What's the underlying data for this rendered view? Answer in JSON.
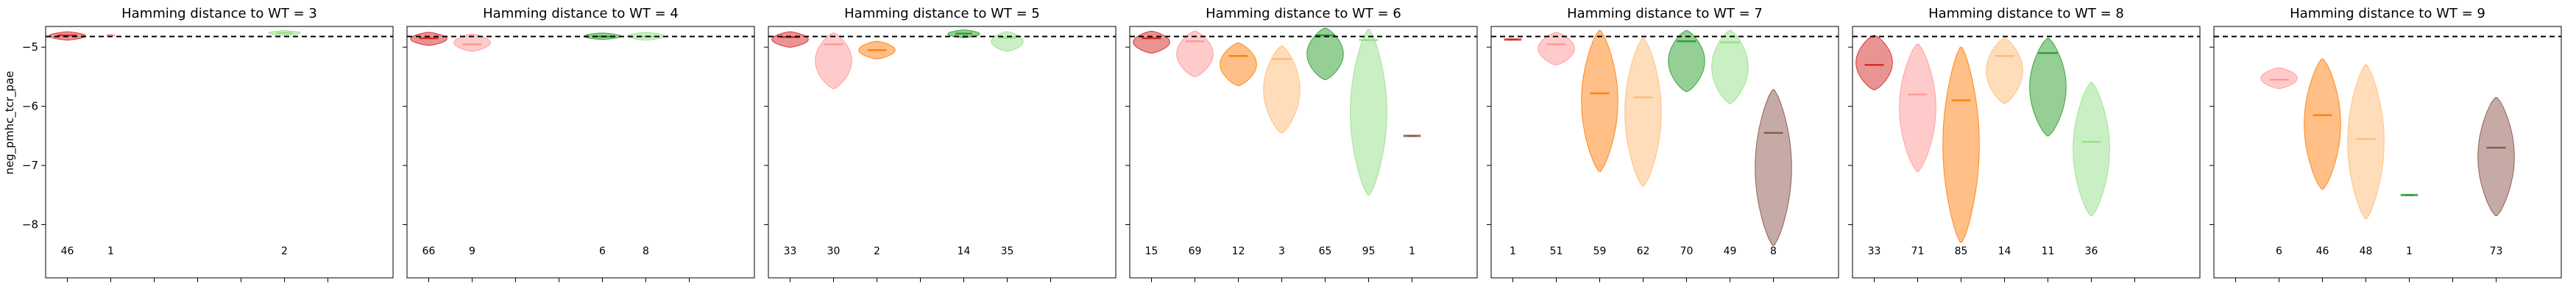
{
  "chart_data": {
    "type": "violin",
    "ylabel": "neg_pmhc_tcr_pae",
    "ylim": [
      -8.9,
      -4.65
    ],
    "yticks": [
      -5,
      -6,
      -7,
      -8
    ],
    "reference_line_y": -4.82,
    "series_colors": [
      "#d62728",
      "#ff9896",
      "#ff7f0e",
      "#ffbb78",
      "#2ca02c",
      "#98df8a",
      "#8c564b"
    ],
    "panels": [
      {
        "title": "Hamming distance to WT = 3",
        "violins": [
          {
            "slot": 0,
            "count": "46",
            "min": -4.88,
            "max": -4.74,
            "median": -4.8,
            "maxw": 0.8
          },
          {
            "slot": 1,
            "count": "1",
            "min": -4.8,
            "max": -4.8,
            "median": -4.8,
            "maxw": 0.2
          },
          {
            "slot": 5,
            "count": "2",
            "min": -4.8,
            "max": -4.72,
            "median": -4.76,
            "maxw": 0.7
          }
        ]
      },
      {
        "title": "Hamming distance to WT = 4",
        "violins": [
          {
            "slot": 0,
            "count": "66",
            "min": -4.97,
            "max": -4.75,
            "median": -4.85,
            "maxw": 0.8
          },
          {
            "slot": 1,
            "count": "9",
            "min": -5.07,
            "max": -4.78,
            "median": -4.95,
            "maxw": 0.8
          },
          {
            "slot": 4,
            "count": "6",
            "min": -4.87,
            "max": -4.76,
            "median": -4.82,
            "maxw": 0.8
          },
          {
            "slot": 5,
            "count": "8",
            "min": -4.88,
            "max": -4.75,
            "median": -4.82,
            "maxw": 0.8
          }
        ]
      },
      {
        "title": "Hamming distance to WT = 5",
        "violins": [
          {
            "slot": 0,
            "count": "33",
            "min": -5.0,
            "max": -4.74,
            "median": -4.83,
            "maxw": 0.8
          },
          {
            "slot": 1,
            "count": "30",
            "min": -5.7,
            "max": -4.76,
            "median": -4.95,
            "maxw": 0.8
          },
          {
            "slot": 2,
            "count": "2",
            "min": -5.2,
            "max": -4.9,
            "median": -5.05,
            "maxw": 0.8
          },
          {
            "slot": 4,
            "count": "14",
            "min": -4.84,
            "max": -4.71,
            "median": -4.77,
            "maxw": 0.7
          },
          {
            "slot": 5,
            "count": "35",
            "min": -5.07,
            "max": -4.74,
            "median": -4.84,
            "maxw": 0.7
          }
        ]
      },
      {
        "title": "Hamming distance to WT = 6",
        "violins": [
          {
            "slot": 0,
            "count": "15",
            "min": -5.1,
            "max": -4.73,
            "median": -4.85,
            "maxw": 0.8
          },
          {
            "slot": 1,
            "count": "69",
            "min": -5.5,
            "max": -4.73,
            "median": -4.9,
            "maxw": 0.8
          },
          {
            "slot": 2,
            "count": "12",
            "min": -5.65,
            "max": -4.93,
            "median": -5.15,
            "maxw": 0.8
          },
          {
            "slot": 3,
            "count": "3",
            "min": -6.45,
            "max": -4.98,
            "median": -5.2,
            "maxw": 0.8
          },
          {
            "slot": 4,
            "count": "65",
            "min": -5.55,
            "max": -4.68,
            "median": -4.8,
            "maxw": 0.8
          },
          {
            "slot": 5,
            "count": "95",
            "min": -7.5,
            "max": -4.7,
            "median": -4.88,
            "maxw": 0.8
          },
          {
            "slot": 6,
            "count": "1",
            "min": -6.5,
            "max": -6.5,
            "median": -6.5,
            "maxw": 0.4
          }
        ]
      },
      {
        "title": "Hamming distance to WT = 7",
        "violins": [
          {
            "slot": 0,
            "count": "1",
            "min": -4.87,
            "max": -4.87,
            "median": -4.87,
            "maxw": 0.4
          },
          {
            "slot": 1,
            "count": "51",
            "min": -5.3,
            "max": -4.75,
            "median": -4.95,
            "maxw": 0.8
          },
          {
            "slot": 2,
            "count": "59",
            "min": -7.1,
            "max": -4.72,
            "median": -5.78,
            "maxw": 0.8
          },
          {
            "slot": 3,
            "count": "62",
            "min": -7.35,
            "max": -4.85,
            "median": -5.85,
            "maxw": 0.8
          },
          {
            "slot": 4,
            "count": "70",
            "min": -5.75,
            "max": -4.72,
            "median": -4.9,
            "maxw": 0.8
          },
          {
            "slot": 5,
            "count": "49",
            "min": -5.95,
            "max": -4.72,
            "median": -4.92,
            "maxw": 0.8
          },
          {
            "slot": 6,
            "count": "8",
            "min": -8.35,
            "max": -5.72,
            "median": -6.45,
            "maxw": 0.8
          }
        ]
      },
      {
        "title": "Hamming distance to WT = 8",
        "violins": [
          {
            "slot": 0,
            "count": "33",
            "min": -5.72,
            "max": -4.8,
            "median": -5.3,
            "maxw": 0.8
          },
          {
            "slot": 1,
            "count": "71",
            "min": -7.1,
            "max": -4.95,
            "median": -5.8,
            "maxw": 0.8
          },
          {
            "slot": 2,
            "count": "85",
            "min": -8.3,
            "max": -5.0,
            "median": -5.9,
            "maxw": 0.8
          },
          {
            "slot": 3,
            "count": "14",
            "min": -5.95,
            "max": -4.85,
            "median": -5.15,
            "maxw": 0.8
          },
          {
            "slot": 4,
            "count": "11",
            "min": -6.5,
            "max": -4.85,
            "median": -5.1,
            "maxw": 0.8
          },
          {
            "slot": 5,
            "count": "36",
            "min": -7.85,
            "max": -5.6,
            "median": -6.6,
            "maxw": 0.8
          }
        ]
      },
      {
        "title": "Hamming distance to WT = 9",
        "violins": [
          {
            "slot": 1,
            "count": "6",
            "min": -5.7,
            "max": -5.35,
            "median": -5.55,
            "maxw": 0.8
          },
          {
            "slot": 2,
            "count": "46",
            "min": -7.4,
            "max": -5.2,
            "median": -6.15,
            "maxw": 0.8
          },
          {
            "slot": 3,
            "count": "48",
            "min": -7.9,
            "max": -5.3,
            "median": -6.55,
            "maxw": 0.8
          },
          {
            "slot": 4,
            "count": "1",
            "min": -7.5,
            "max": -7.5,
            "median": -7.5,
            "maxw": 0.4
          },
          {
            "slot": 6,
            "count": "73",
            "min": -7.85,
            "max": -5.85,
            "median": -6.7,
            "maxw": 0.8
          }
        ]
      }
    ]
  }
}
